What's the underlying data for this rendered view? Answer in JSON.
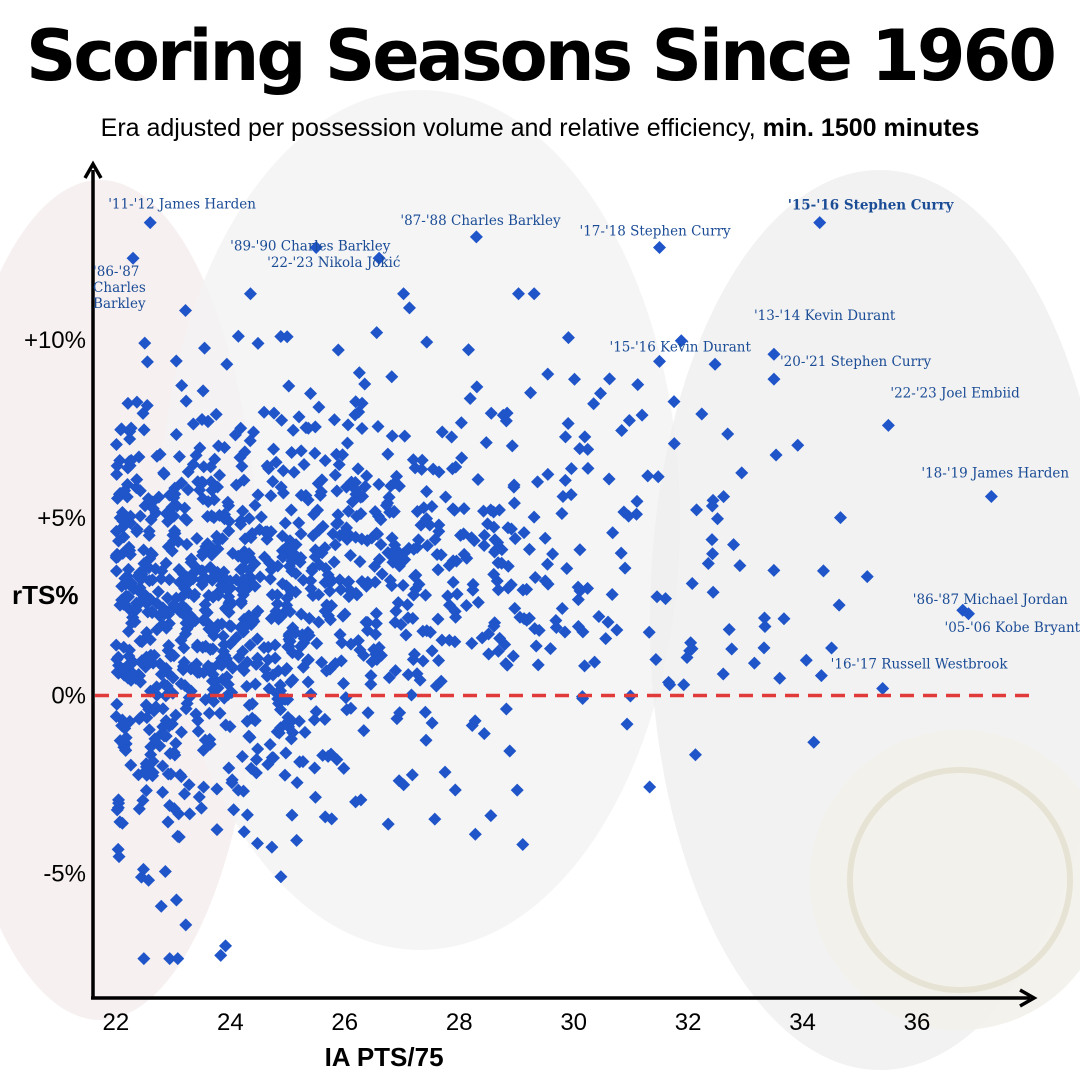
{
  "title": "Scoring Seasons Since 1960",
  "subtitle": {
    "text": "Era adjusted per possession volume and relative efficiency, ",
    "bold": "min. 1500 minutes"
  },
  "colors": {
    "marker": "#1f55c9",
    "annotation": "#1b4c96",
    "reference_line": "#e03a3a",
    "axis": "#000000"
  },
  "chart_data": {
    "type": "scatter",
    "title": "Scoring Seasons Since 1960",
    "xlabel": "IA PTS/75",
    "ylabel": "rTS%",
    "xlim": [
      21.6,
      37.8
    ],
    "ylim": [
      -8,
      14.5
    ],
    "x_ticks": [
      22,
      24,
      26,
      28,
      30,
      32,
      34,
      36
    ],
    "y_ticks": [
      {
        "value": 10,
        "label": "+10%"
      },
      {
        "value": 5,
        "label": "+5%"
      },
      {
        "value": 0,
        "label": "0%"
      },
      {
        "value": -5,
        "label": "-5%"
      }
    ],
    "reference_line": {
      "y": 0,
      "style": "dashed"
    },
    "labeled_points": [
      {
        "x": 22.6,
        "y": 13.3,
        "label": "'11-'12 James Harden",
        "bold": false
      },
      {
        "x": 22.3,
        "y": 12.3,
        "label": "'86-'87 Charles Barkley",
        "bold": false
      },
      {
        "x": 25.5,
        "y": 12.6,
        "label": "'89-'90 Charles Barkley",
        "bold": false
      },
      {
        "x": 28.3,
        "y": 12.9,
        "label": "'87-'88 Charles Barkley",
        "bold": false
      },
      {
        "x": 26.6,
        "y": 12.3,
        "label": "'22-'23 Nikola Jokić",
        "bold": false
      },
      {
        "x": 31.5,
        "y": 12.6,
        "label": "'17-'18 Stephen Curry",
        "bold": false
      },
      {
        "x": 34.3,
        "y": 13.3,
        "label": "'15-'16 Stephen Curry",
        "bold": true
      },
      {
        "x": 31.5,
        "y": 9.4,
        "label": "'15-'16 Kevin Durant",
        "bold": false
      },
      {
        "x": 33.5,
        "y": 9.6,
        "label": "'13-'14 Kevin Durant",
        "bold": false
      },
      {
        "x": 33.5,
        "y": 8.9,
        "label": "'20-'21 Stephen Curry",
        "bold": false
      },
      {
        "x": 35.5,
        "y": 7.6,
        "label": "'22-'23 Joel Embiid",
        "bold": false
      },
      {
        "x": 37.3,
        "y": 5.6,
        "label": "'18-'19 James Harden",
        "bold": false
      },
      {
        "x": 36.8,
        "y": 2.4,
        "label": "'86-'87 Michael Jordan",
        "bold": false
      },
      {
        "x": 36.9,
        "y": 2.3,
        "label": "'05-'06 Kobe Bryant",
        "bold": false
      },
      {
        "x": 35.4,
        "y": 0.2,
        "label": "'16-'17 Russell Westbrook",
        "bold": false
      }
    ],
    "cloud": [
      {
        "x_min": 22.0,
        "x_max": 23.5,
        "y_mean": 2.0,
        "y_sd": 3.4,
        "n": 360
      },
      {
        "x_min": 23.5,
        "x_max": 25.0,
        "y_mean": 2.7,
        "y_sd": 3.1,
        "n": 300
      },
      {
        "x_min": 25.0,
        "x_max": 26.5,
        "y_mean": 3.1,
        "y_sd": 3.0,
        "n": 210
      },
      {
        "x_min": 26.5,
        "x_max": 28.0,
        "y_mean": 3.2,
        "y_sd": 2.8,
        "n": 140
      },
      {
        "x_min": 28.0,
        "x_max": 29.5,
        "y_mean": 3.3,
        "y_sd": 2.8,
        "n": 90
      },
      {
        "x_min": 29.5,
        "x_max": 31.0,
        "y_mean": 3.5,
        "y_sd": 2.9,
        "n": 55
      },
      {
        "x_min": 31.0,
        "x_max": 32.5,
        "y_mean": 3.8,
        "y_sd": 2.8,
        "n": 32
      },
      {
        "x_min": 32.5,
        "x_max": 34.0,
        "y_mean": 4.0,
        "y_sd": 2.6,
        "n": 18
      },
      {
        "x_min": 34.0,
        "x_max": 35.3,
        "y_mean": 4.0,
        "y_sd": 2.0,
        "n": 8
      }
    ]
  }
}
